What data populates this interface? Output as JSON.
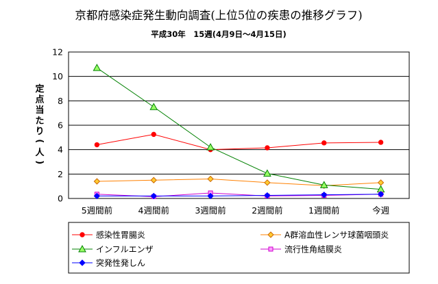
{
  "chart_data": {
    "type": "line",
    "title": "京都府感染症発生動向調査(上位5位の疾患の推移グラフ)",
    "subtitle": "平成30年　15週(4月9日～4月15日)",
    "ylabel": "定点当たり(人)",
    "xlabel": "",
    "categories": [
      "5週間前",
      "4週間前",
      "3週間前",
      "2週間前",
      "1週間前",
      "今週"
    ],
    "ylim": [
      0,
      12
    ],
    "yticks": [
      0,
      2,
      4,
      6,
      8,
      10,
      12
    ],
    "grid": "horizontal",
    "legend_position": "bottom",
    "series": [
      {
        "name": "感染性胃腸炎",
        "color": "#ff0000",
        "marker": "circle",
        "values": [
          4.4,
          5.25,
          4.0,
          4.15,
          4.55,
          4.6
        ]
      },
      {
        "name": "A群溶血性レンサ球菌咽頭炎",
        "color": "#ff8000",
        "marker": "diamond",
        "values": [
          1.4,
          1.5,
          1.6,
          1.3,
          1.05,
          1.3
        ]
      },
      {
        "name": "インフルエンザ",
        "color": "#008000",
        "marker": "triangle",
        "values": [
          10.7,
          7.5,
          4.2,
          2.05,
          1.1,
          0.75
        ]
      },
      {
        "name": "流行性角結膜炎",
        "color": "#cc00cc",
        "marker": "square",
        "values": [
          0.35,
          0.15,
          0.45,
          0.2,
          0.25,
          0.35
        ]
      },
      {
        "name": "突発性発しん",
        "color": "#0000ff",
        "marker": "diamond",
        "values": [
          0.2,
          0.2,
          0.2,
          0.25,
          0.3,
          0.35
        ]
      }
    ]
  }
}
